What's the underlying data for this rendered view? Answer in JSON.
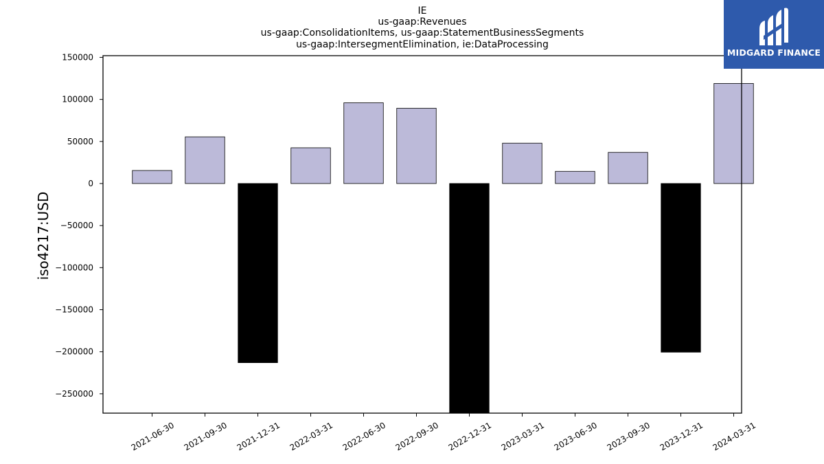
{
  "title_lines": [
    "IE",
    "us-gaap:Revenues",
    "us-gaap:ConsolidationItems, us-gaap:StatementBusinessSegments",
    "us-gaap:IntersegmentElimination, ie:DataProcessing"
  ],
  "logo": {
    "text": "MIDGARD FINANCE",
    "color": "#2e5aac"
  },
  "chart_data": {
    "type": "bar",
    "title": "IE\nus-gaap:Revenues\nus-gaap:ConsolidationItems, us-gaap:StatementBusinessSegments\nus-gaap:IntersegmentElimination, ie:DataProcessing",
    "xlabel": "",
    "ylabel": "iso4217:USD",
    "categories": [
      "2021-06-30",
      "2021-09-30",
      "2021-12-31",
      "2022-03-31",
      "2022-06-30",
      "2022-09-30",
      "2022-12-31",
      "2023-03-31",
      "2023-06-30",
      "2023-09-30",
      "2023-12-31",
      "2024-03-31"
    ],
    "values": [
      15500,
      55500,
      -213000,
      42500,
      96000,
      89500,
      -290000,
      48000,
      14500,
      37000,
      -200500,
      119000
    ],
    "ylim": [
      -273000,
      152000
    ],
    "yticks": [
      150000,
      100000,
      50000,
      0,
      -50000,
      -100000,
      -150000,
      -200000,
      -250000
    ],
    "colors": {
      "positive": "#bcbad9",
      "negative": "#000000",
      "edge": "#000000"
    },
    "grid": false,
    "legend": "none"
  }
}
